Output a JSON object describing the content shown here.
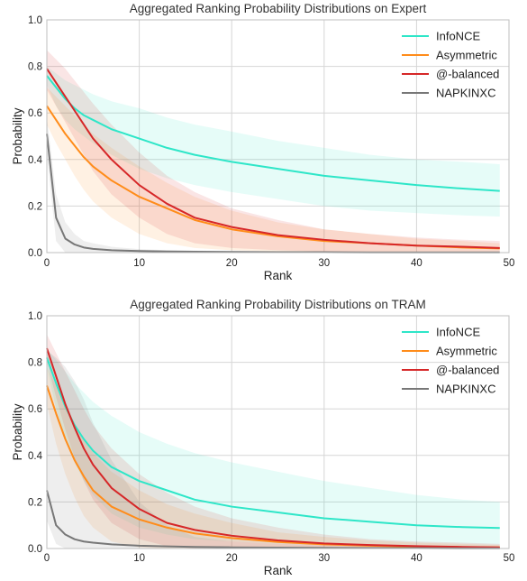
{
  "chart_data": [
    {
      "type": "line",
      "title": "Aggregated Ranking Probability Distributions on Expert",
      "xlabel": "Rank",
      "ylabel": "Probability",
      "xlim": [
        0,
        50
      ],
      "ylim": [
        0,
        1.0
      ],
      "xticks": [
        "0",
        "10",
        "20",
        "30",
        "40",
        "50"
      ],
      "yticks": [
        "0.0",
        "0.2",
        "0.4",
        "0.6",
        "0.8",
        "1.0"
      ],
      "grid": true,
      "legend_position": "top-right",
      "series": [
        {
          "name": "InfoNCE",
          "color": "#2ee6c8",
          "x": [
            0,
            1,
            2,
            3,
            4,
            5,
            7,
            10,
            13,
            16,
            20,
            25,
            30,
            35,
            40,
            45,
            49
          ],
          "y": [
            0.76,
            0.71,
            0.66,
            0.62,
            0.59,
            0.57,
            0.53,
            0.49,
            0.45,
            0.42,
            0.39,
            0.36,
            0.33,
            0.31,
            0.29,
            0.275,
            0.265
          ],
          "lower": [
            0.72,
            0.63,
            0.57,
            0.53,
            0.5,
            0.47,
            0.42,
            0.36,
            0.32,
            0.29,
            0.26,
            0.23,
            0.2,
            0.18,
            0.17,
            0.16,
            0.155
          ],
          "upper": [
            0.8,
            0.77,
            0.74,
            0.72,
            0.7,
            0.68,
            0.65,
            0.62,
            0.58,
            0.55,
            0.52,
            0.48,
            0.45,
            0.42,
            0.4,
            0.39,
            0.38
          ]
        },
        {
          "name": "Asymmetric",
          "color": "#ff8c1a",
          "x": [
            0,
            1,
            2,
            3,
            4,
            5,
            7,
            10,
            13,
            16,
            20,
            25,
            30,
            35,
            40,
            45,
            49
          ],
          "y": [
            0.63,
            0.57,
            0.51,
            0.46,
            0.41,
            0.37,
            0.31,
            0.24,
            0.19,
            0.14,
            0.1,
            0.07,
            0.05,
            0.04,
            0.03,
            0.022,
            0.018
          ],
          "lower": [
            0.55,
            0.47,
            0.4,
            0.33,
            0.27,
            0.22,
            0.15,
            0.08,
            0.04,
            0.02,
            0.01,
            0.005,
            0.0,
            0.0,
            0.0,
            0.0,
            0.0
          ],
          "upper": [
            0.71,
            0.67,
            0.63,
            0.59,
            0.55,
            0.51,
            0.45,
            0.37,
            0.3,
            0.24,
            0.18,
            0.13,
            0.1,
            0.08,
            0.06,
            0.05,
            0.04
          ]
        },
        {
          "name": "@-balanced",
          "color": "#d62728",
          "x": [
            0,
            1,
            2,
            3,
            4,
            5,
            7,
            10,
            13,
            16,
            20,
            25,
            30,
            35,
            40,
            45,
            49
          ],
          "y": [
            0.79,
            0.73,
            0.67,
            0.61,
            0.55,
            0.49,
            0.4,
            0.29,
            0.21,
            0.15,
            0.11,
            0.075,
            0.055,
            0.04,
            0.03,
            0.025,
            0.02
          ],
          "lower": [
            0.7,
            0.63,
            0.56,
            0.49,
            0.42,
            0.35,
            0.25,
            0.15,
            0.08,
            0.04,
            0.02,
            0.01,
            0.005,
            0.0,
            0.0,
            0.0,
            0.0
          ],
          "upper": [
            0.87,
            0.83,
            0.79,
            0.74,
            0.69,
            0.64,
            0.55,
            0.43,
            0.33,
            0.26,
            0.19,
            0.14,
            0.1,
            0.08,
            0.065,
            0.055,
            0.05
          ]
        },
        {
          "name": "NAPKINXC",
          "color": "#777777",
          "x": [
            0,
            1,
            2,
            3,
            4,
            5,
            7,
            10,
            13,
            16,
            20,
            25,
            30,
            35,
            40,
            45,
            49
          ],
          "y": [
            0.51,
            0.15,
            0.06,
            0.035,
            0.022,
            0.016,
            0.01,
            0.007,
            0.005,
            0.004,
            0.003,
            0.002,
            0.002,
            0.001,
            0.001,
            0.001,
            0.001
          ],
          "lower": [
            0.42,
            0.05,
            0.0,
            0.0,
            0.0,
            0.0,
            0.0,
            0.0,
            0.0,
            0.0,
            0.0,
            0.0,
            0.0,
            0.0,
            0.0,
            0.0,
            0.0
          ],
          "upper": [
            0.58,
            0.25,
            0.13,
            0.08,
            0.05,
            0.04,
            0.025,
            0.015,
            0.01,
            0.008,
            0.006,
            0.004,
            0.003,
            0.002,
            0.002,
            0.002,
            0.002
          ]
        }
      ]
    },
    {
      "type": "line",
      "title": "Aggregated Ranking Probability Distributions on TRAM",
      "xlabel": "Rank",
      "ylabel": "Probability",
      "xlim": [
        0,
        50
      ],
      "ylim": [
        0,
        1.0
      ],
      "xticks": [
        "0",
        "10",
        "20",
        "30",
        "40",
        "50"
      ],
      "yticks": [
        "0.0",
        "0.2",
        "0.4",
        "0.6",
        "0.8",
        "1.0"
      ],
      "grid": true,
      "legend_position": "top-right",
      "series": [
        {
          "name": "InfoNCE",
          "color": "#2ee6c8",
          "x": [
            0,
            1,
            2,
            3,
            4,
            5,
            7,
            10,
            13,
            16,
            20,
            25,
            30,
            35,
            40,
            45,
            49
          ],
          "y": [
            0.82,
            0.71,
            0.61,
            0.53,
            0.47,
            0.42,
            0.35,
            0.29,
            0.25,
            0.21,
            0.18,
            0.155,
            0.13,
            0.115,
            0.1,
            0.092,
            0.088
          ],
          "lower": [
            0.78,
            0.6,
            0.47,
            0.37,
            0.29,
            0.23,
            0.15,
            0.09,
            0.06,
            0.04,
            0.03,
            0.02,
            0.015,
            0.01,
            0.01,
            0.01,
            0.01
          ],
          "upper": [
            0.86,
            0.81,
            0.76,
            0.71,
            0.67,
            0.63,
            0.57,
            0.5,
            0.45,
            0.41,
            0.37,
            0.33,
            0.29,
            0.26,
            0.23,
            0.21,
            0.2
          ]
        },
        {
          "name": "Asymmetric",
          "color": "#ff8c1a",
          "x": [
            0,
            1,
            2,
            3,
            4,
            5,
            7,
            10,
            13,
            16,
            20,
            25,
            30,
            35,
            40,
            45,
            49
          ],
          "y": [
            0.7,
            0.58,
            0.47,
            0.38,
            0.31,
            0.25,
            0.18,
            0.125,
            0.09,
            0.065,
            0.045,
            0.028,
            0.018,
            0.012,
            0.008,
            0.006,
            0.005
          ],
          "lower": [
            0.62,
            0.45,
            0.32,
            0.22,
            0.14,
            0.09,
            0.03,
            0.005,
            0.0,
            0.0,
            0.0,
            0.0,
            0.0,
            0.0,
            0.0,
            0.0,
            0.0
          ],
          "upper": [
            0.78,
            0.7,
            0.62,
            0.54,
            0.47,
            0.41,
            0.33,
            0.25,
            0.19,
            0.15,
            0.11,
            0.07,
            0.05,
            0.035,
            0.025,
            0.02,
            0.015
          ]
        },
        {
          "name": "@-balanced",
          "color": "#d62728",
          "x": [
            0,
            1,
            2,
            3,
            4,
            5,
            7,
            10,
            13,
            16,
            20,
            25,
            30,
            35,
            40,
            45,
            49
          ],
          "y": [
            0.86,
            0.74,
            0.62,
            0.52,
            0.43,
            0.36,
            0.26,
            0.17,
            0.11,
            0.08,
            0.055,
            0.035,
            0.022,
            0.015,
            0.01,
            0.007,
            0.005
          ],
          "lower": [
            0.8,
            0.65,
            0.51,
            0.39,
            0.29,
            0.21,
            0.11,
            0.04,
            0.01,
            0.0,
            0.0,
            0.0,
            0.0,
            0.0,
            0.0,
            0.0,
            0.0
          ],
          "upper": [
            0.92,
            0.84,
            0.76,
            0.68,
            0.6,
            0.53,
            0.43,
            0.32,
            0.24,
            0.18,
            0.13,
            0.09,
            0.06,
            0.04,
            0.03,
            0.025,
            0.02
          ]
        },
        {
          "name": "NAPKINXC",
          "color": "#777777",
          "x": [
            0,
            1,
            2,
            3,
            4,
            5,
            7,
            10,
            13,
            16,
            20,
            25,
            30,
            35,
            40,
            45,
            49
          ],
          "y": [
            0.25,
            0.1,
            0.06,
            0.04,
            0.03,
            0.025,
            0.018,
            0.012,
            0.009,
            0.007,
            0.005,
            0.004,
            0.003,
            0.002,
            0.002,
            0.001,
            0.001
          ],
          "lower": [
            0.12,
            0.02,
            0.0,
            0.0,
            0.0,
            0.0,
            0.0,
            0.0,
            0.0,
            0.0,
            0.0,
            0.0,
            0.0,
            0.0,
            0.0,
            0.0,
            0.0
          ],
          "upper": [
            0.85,
            0.82,
            0.78,
            0.72,
            0.64,
            0.54,
            0.38,
            0.2,
            0.1,
            0.05,
            0.03,
            0.02,
            0.015,
            0.01,
            0.008,
            0.006,
            0.005
          ]
        }
      ]
    }
  ]
}
